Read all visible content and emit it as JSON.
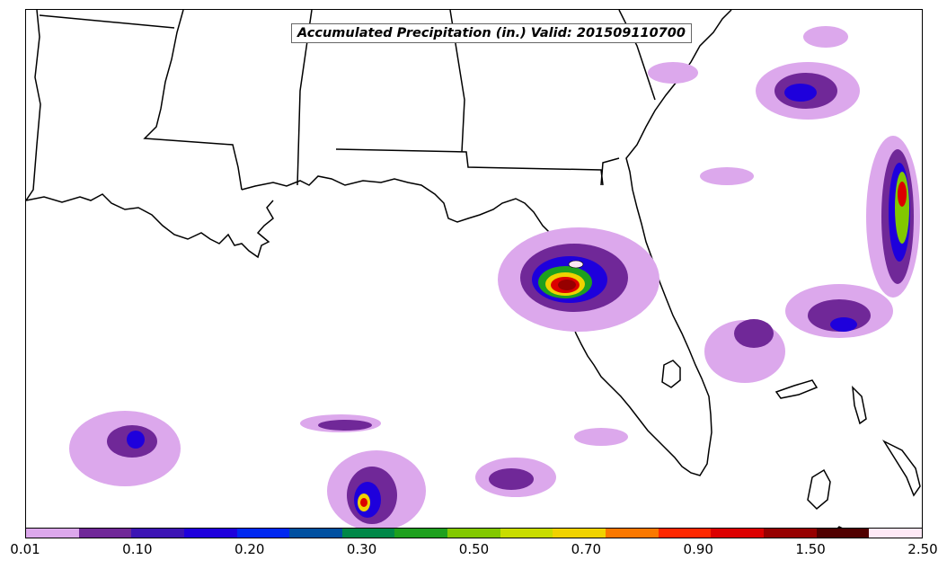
{
  "title": "Accumulated Precipitation (in.) Valid: 201509110700",
  "colorbar": {
    "colors": [
      "#dca8ec",
      "#702898",
      "#3c14b4",
      "#1e00dc",
      "#0028f0",
      "#0050a0",
      "#008848",
      "#1ea01e",
      "#82c800",
      "#c8dc00",
      "#f0d200",
      "#fa7800",
      "#ff2800",
      "#dc0000",
      "#960000",
      "#500000",
      "#fde8f5"
    ],
    "tick_labels": [
      {
        "text": "0.01",
        "at_edge": 0
      },
      {
        "text": "0.10",
        "at_edge": 2
      },
      {
        "text": "0.20",
        "at_edge": 4
      },
      {
        "text": "0.30",
        "at_edge": 6
      },
      {
        "text": "0.50",
        "at_edge": 8
      },
      {
        "text": "0.70",
        "at_edge": 10
      },
      {
        "text": "0.90",
        "at_edge": 12
      },
      {
        "text": "1.50",
        "at_edge": 14
      },
      {
        "text": "2.50",
        "at_edge": 16
      }
    ]
  }
}
